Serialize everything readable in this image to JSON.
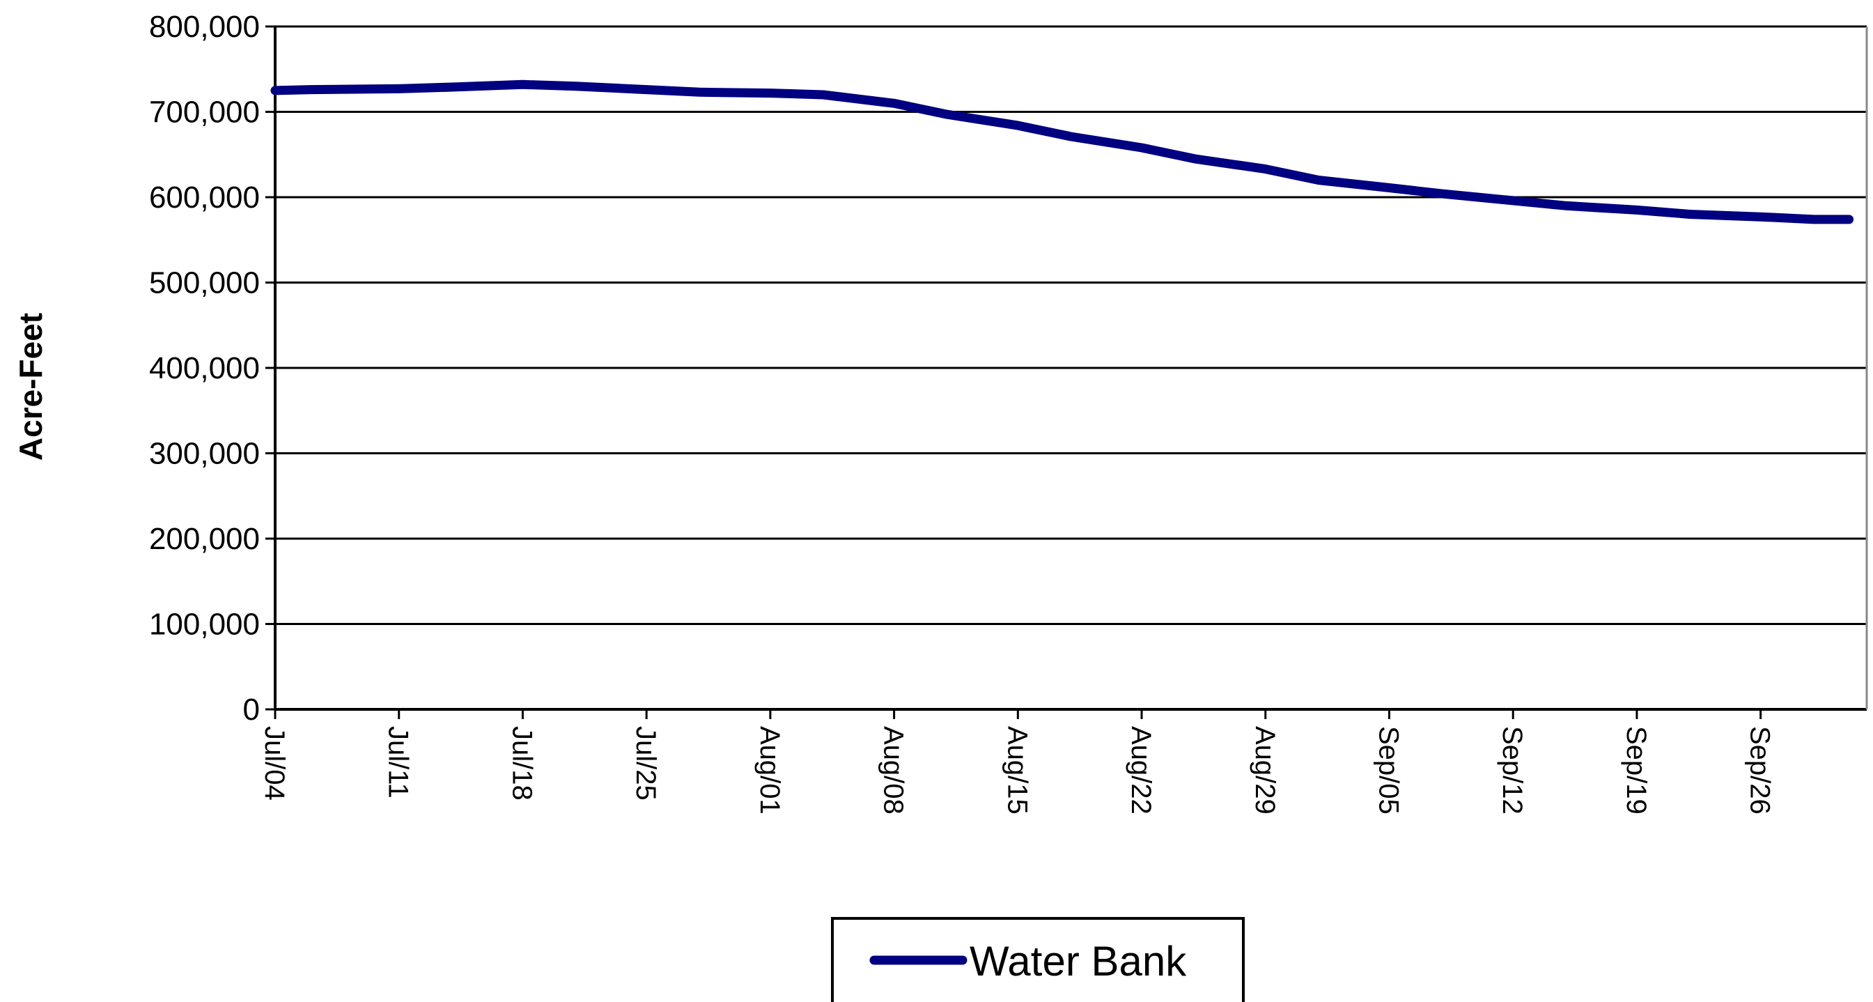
{
  "chart_data": {
    "type": "line",
    "title": "",
    "xlabel": "",
    "ylabel": "Acre-Feet",
    "ylim": [
      0,
      800000
    ],
    "y_ticks": [
      0,
      100000,
      200000,
      300000,
      400000,
      500000,
      600000,
      700000,
      800000
    ],
    "y_tick_labels": [
      "0",
      "100,000",
      "200,000",
      "300,000",
      "400,000",
      "500,000",
      "600,000",
      "700,000",
      "800,000"
    ],
    "x_range_days": [
      0,
      90
    ],
    "x_ticks": [
      "Jul/04",
      "Jul/11",
      "Jul/18",
      "Jul/25",
      "Aug/01",
      "Aug/08",
      "Aug/15",
      "Aug/22",
      "Aug/29",
      "Sep/05",
      "Sep/12",
      "Sep/19",
      "Sep/26"
    ],
    "grid": true,
    "legend_position": "bottom",
    "series": [
      {
        "name": "Water Bank",
        "color": "#000080",
        "x": [
          "Jul/04",
          "Jul/06",
          "Jul/11",
          "Jul/14",
          "Jul/18",
          "Jul/21",
          "Jul/25",
          "Jul/28",
          "Aug/01",
          "Aug/04",
          "Aug/08",
          "Aug/11",
          "Aug/15",
          "Aug/18",
          "Aug/22",
          "Aug/25",
          "Aug/29",
          "Sep/01",
          "Sep/05",
          "Sep/08",
          "Sep/12",
          "Sep/15",
          "Sep/19",
          "Sep/22",
          "Sep/26",
          "Sep/29",
          "Oct/01"
        ],
        "values": [
          725000,
          726000,
          727000,
          729000,
          732000,
          730000,
          726000,
          723000,
          722000,
          720000,
          710000,
          697000,
          684000,
          671000,
          658000,
          645000,
          633000,
          620000,
          611000,
          604000,
          596000,
          590000,
          585000,
          580000,
          577000,
          574000,
          574000
        ]
      }
    ]
  }
}
